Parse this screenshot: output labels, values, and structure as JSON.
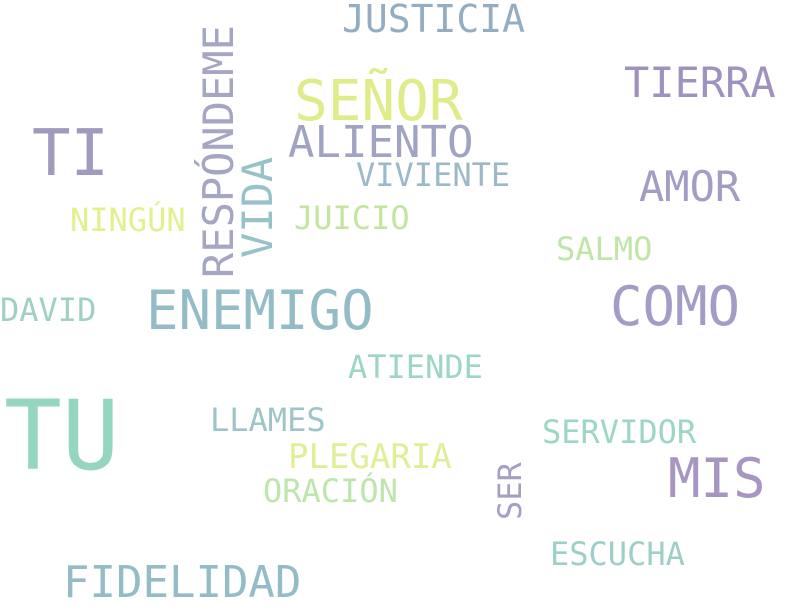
{
  "word_cloud": {
    "words": [
      {
        "key": "justicia",
        "text": "JUSTICIA",
        "color": "#94adc2"
      },
      {
        "key": "senor",
        "text": "SEÑOR",
        "color": "#e0ec8a"
      },
      {
        "key": "tierra",
        "text": "TIERRA",
        "color": "#a092bf"
      },
      {
        "key": "ti",
        "text": "TI",
        "color": "#a09abf"
      },
      {
        "key": "aliento",
        "text": "ALIENTO",
        "color": "#a0a4c2"
      },
      {
        "key": "viviente",
        "text": "VIVIENTE",
        "color": "#9bb9c8"
      },
      {
        "key": "amor",
        "text": "AMOR",
        "color": "#a49cc4"
      },
      {
        "key": "ningun",
        "text": "NINGÚN",
        "color": "#e4ef8e"
      },
      {
        "key": "juicio",
        "text": "JUICIO",
        "color": "#c4e5a0"
      },
      {
        "key": "salmo",
        "text": "SALMO",
        "color": "#bfe5a8"
      },
      {
        "key": "david",
        "text": "DAVID",
        "color": "#a0d0c4"
      },
      {
        "key": "enemigo",
        "text": "ENEMIGO",
        "color": "#94bcc6"
      },
      {
        "key": "como",
        "text": "COMO",
        "color": "#a49cc6"
      },
      {
        "key": "atiende",
        "text": "ATIENDE",
        "color": "#9dd6c4"
      },
      {
        "key": "tu",
        "text": "TU",
        "color": "#95d6c0"
      },
      {
        "key": "llames",
        "text": "LLAMES",
        "color": "#9dc5c8"
      },
      {
        "key": "servidor",
        "text": "SERVIDOR",
        "color": "#9ed6c6"
      },
      {
        "key": "plegaria",
        "text": "PLEGARIA",
        "color": "#e2ee96"
      },
      {
        "key": "mis",
        "text": "MIS",
        "color": "#a896c2"
      },
      {
        "key": "oracion",
        "text": "ORACIÓN",
        "color": "#bde6ac"
      },
      {
        "key": "escucha",
        "text": "ESCUCHA",
        "color": "#9dcfc8"
      },
      {
        "key": "fidelidad",
        "text": "FIDELIDAD",
        "color": "#94bcc6"
      },
      {
        "key": "respondeme",
        "text": "RESPÓNDEME",
        "color": "#a4a6c4"
      },
      {
        "key": "vida",
        "text": "VIDA",
        "color": "#97c2c8"
      },
      {
        "key": "ser",
        "text": "SER",
        "color": "#a4a0c4"
      }
    ]
  }
}
